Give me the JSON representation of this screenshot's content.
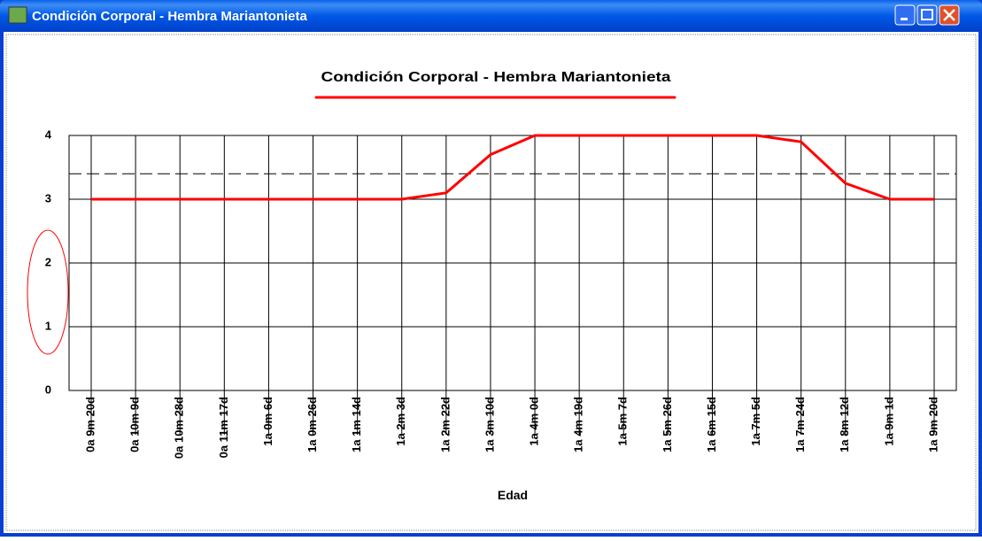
{
  "window": {
    "title": "Condición Corporal - Hembra Mariantonieta"
  },
  "chart_data": {
    "type": "line",
    "title": "Condición Corporal - Hembra Mariantonieta",
    "x_label": "Edad",
    "categories": [
      "0a 9m 20d",
      "0a 10m 9d",
      "0a 10m 28d",
      "0a 11m 17d",
      "1a 0m 6d",
      "1a 0m 26d",
      "1a 1m 14d",
      "1a 2m 3d",
      "1a 2m 22d",
      "1a 3m 10d",
      "1a 4m 0d",
      "1a 4m 19d",
      "1a 5m 7d",
      "1a 5m 26d",
      "1a 6m 15d",
      "1a 7m 5d",
      "1a 7m 24d",
      "1a 8m 12d",
      "1a 9m 1d",
      "1a 9m 20d"
    ],
    "series": [
      {
        "color": "#ff0000",
        "values": [
          3,
          3,
          3,
          3,
          3,
          3,
          3,
          3,
          3.1,
          3.7,
          4,
          4,
          4,
          4,
          4,
          4,
          3.9,
          3.25,
          3,
          3
        ]
      }
    ],
    "reference_line": 3.4,
    "ylim": [
      0,
      4
    ],
    "yticks": [
      0,
      1,
      2,
      3,
      4
    ],
    "grid": true
  }
}
